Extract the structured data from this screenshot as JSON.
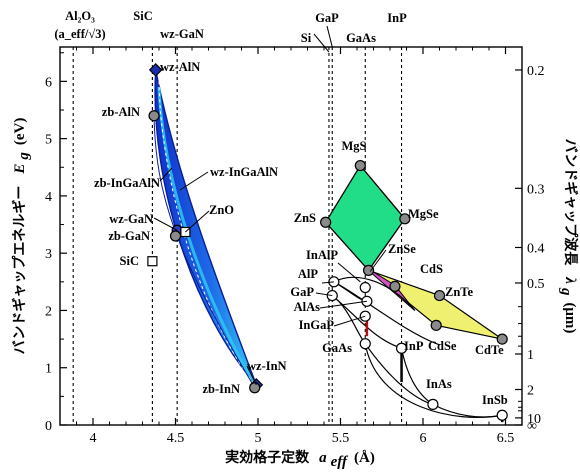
{
  "chart_data": {
    "type": "scatter",
    "title": "",
    "xlabel": "実効格子定数",
    "xlabel_symbol": "a",
    "xlabel_sub": "eff",
    "xlabel_unit": "(Å)",
    "ylabel_left": "バンドギャップエネルギー",
    "ylabel_left_symbol": "E",
    "ylabel_left_sub": "g",
    "ylabel_left_unit": "(eV)",
    "ylabel_right": "バンドギャップ波長",
    "ylabel_right_symbol": "λ",
    "ylabel_right_sub": "g",
    "ylabel_right_unit": "(μm)",
    "xlim": [
      3.8,
      6.6
    ],
    "ylim": [
      0,
      6.6
    ],
    "x_ticks": [
      4,
      4.5,
      5,
      5.5,
      6,
      6.5
    ],
    "x_tick_labels": [
      "4",
      "4.5",
      "5",
      "5.5",
      "6",
      "6.5"
    ],
    "y_ticks": [
      0,
      1,
      2,
      3,
      4,
      5,
      6
    ],
    "y_tick_labels": [
      "0",
      "1",
      "2",
      "3",
      "4",
      "5",
      "6"
    ],
    "right_ticks": [
      {
        "label": "0.2",
        "lambda": 0.2
      },
      {
        "label": "0.3",
        "lambda": 0.3
      },
      {
        "label": "0.4",
        "lambda": 0.4
      },
      {
        "label": "0.5",
        "lambda": 0.5
      },
      {
        "label": "1",
        "lambda": 1
      },
      {
        "label": "2",
        "lambda": 2
      },
      {
        "label": "10",
        "lambda": 10
      },
      {
        "label": "∞",
        "lambda": null
      }
    ],
    "right_minor_ticks_lambda": [
      0.6,
      0.7,
      0.8,
      0.9,
      3,
      4,
      5
    ],
    "top_markers": [
      {
        "label": "Al₂O₃",
        "sublabel": "(a_eff/√3)",
        "x": 3.88
      },
      {
        "label": "SiC",
        "x": 4.36
      },
      {
        "label": "wz-GaN",
        "x": 4.51
      },
      {
        "label": "Si",
        "x": 5.43
      },
      {
        "label": "GaP",
        "x": 5.45
      },
      {
        "label": "GaAs",
        "x": 5.65
      },
      {
        "label": "InP",
        "x": 5.87
      }
    ],
    "regions": [
      {
        "name": "wz-InGaAlN",
        "color": "#1c3fd6",
        "highlight": "#2ec8f0"
      },
      {
        "name": "II-VI MgS-ZnS-MgSe",
        "color": "#22dd88"
      },
      {
        "name": "II-VI ZnSe-ZnTe-CdTe-CdSe",
        "color": "#f0f070"
      },
      {
        "name": "ZnSe-CdS",
        "color": "#d052c8"
      }
    ],
    "points": [
      {
        "label": "wz-AlN",
        "x": 4.38,
        "y": 6.2,
        "marker": "diamond-blue"
      },
      {
        "label": "zb-AlN",
        "x": 4.37,
        "y": 5.4,
        "marker": "circle-grey"
      },
      {
        "label": "wz-GaN",
        "x": 4.51,
        "y": 3.4,
        "marker": "circle-blue"
      },
      {
        "label": "zb-GaN",
        "x": 4.5,
        "y": 3.3,
        "marker": "circle-grey"
      },
      {
        "label": "ZnO",
        "x": 4.56,
        "y": 3.37,
        "marker": "square-white"
      },
      {
        "label": "SiC",
        "x": 4.36,
        "y": 2.86,
        "marker": "square-white"
      },
      {
        "label": "wz-InN",
        "x": 4.99,
        "y": 0.7,
        "marker": "diamond-blue"
      },
      {
        "label": "zb-InN",
        "x": 4.98,
        "y": 0.65,
        "marker": "circle-grey"
      },
      {
        "label": "MgS",
        "x": 5.62,
        "y": 4.53,
        "marker": "circle-grey"
      },
      {
        "label": "ZnS",
        "x": 5.41,
        "y": 3.54,
        "marker": "circle-grey"
      },
      {
        "label": "MgSe",
        "x": 5.89,
        "y": 3.6,
        "marker": "circle-grey"
      },
      {
        "label": "ZnSe",
        "x": 5.67,
        "y": 2.7,
        "marker": "circle-grey"
      },
      {
        "label": "CdS",
        "x": 5.83,
        "y": 2.42,
        "marker": "circle-grey"
      },
      {
        "label": "ZnTe",
        "x": 6.1,
        "y": 2.26,
        "marker": "circle-grey"
      },
      {
        "label": "CdSe",
        "x": 6.08,
        "y": 1.74,
        "marker": "circle-grey"
      },
      {
        "label": "CdTe",
        "x": 6.48,
        "y": 1.5,
        "marker": "circle-grey"
      },
      {
        "label": "InAlP",
        "x": 5.65,
        "y": 2.4,
        "marker": "circle-white"
      },
      {
        "label": "AlP",
        "x": 5.46,
        "y": 2.5,
        "marker": "circle-white"
      },
      {
        "label": "GaP",
        "x": 5.45,
        "y": 2.26,
        "marker": "circle-white"
      },
      {
        "label": "AlAs",
        "x": 5.66,
        "y": 2.16,
        "marker": "circle-white"
      },
      {
        "label": "InGaP",
        "x": 5.65,
        "y": 1.9,
        "marker": "circle-white"
      },
      {
        "label": "GaAs",
        "x": 5.65,
        "y": 1.42,
        "marker": "circle-white"
      },
      {
        "label": "InP",
        "x": 5.87,
        "y": 1.34,
        "marker": "circle-white"
      },
      {
        "label": "InAs",
        "x": 6.06,
        "y": 0.36,
        "marker": "circle-white"
      },
      {
        "label": "InSb",
        "x": 6.48,
        "y": 0.17,
        "marker": "circle-white"
      }
    ]
  }
}
